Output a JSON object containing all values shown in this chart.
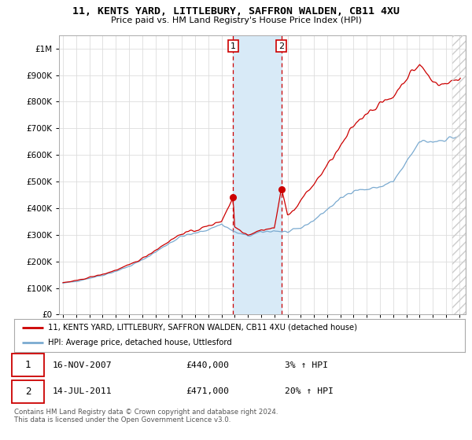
{
  "title": "11, KENTS YARD, LITTLEBURY, SAFFRON WALDEN, CB11 4XU",
  "subtitle": "Price paid vs. HM Land Registry's House Price Index (HPI)",
  "legend_line1": "11, KENTS YARD, LITTLEBURY, SAFFRON WALDEN, CB11 4XU (detached house)",
  "legend_line2": "HPI: Average price, detached house, Uttlesford",
  "annotation1_label": "1",
  "annotation1_date": "16-NOV-2007",
  "annotation1_price": "£440,000",
  "annotation1_hpi": "3% ↑ HPI",
  "annotation2_label": "2",
  "annotation2_date": "14-JUL-2011",
  "annotation2_price": "£471,000",
  "annotation2_hpi": "20% ↑ HPI",
  "footnote": "Contains HM Land Registry data © Crown copyright and database right 2024.\nThis data is licensed under the Open Government Licence v3.0.",
  "red_color": "#cc0000",
  "blue_color": "#7aaad0",
  "shade_color": "#d8eaf7",
  "dashed_color": "#cc0000",
  "grid_color": "#dddddd",
  "bg_color": "#ffffff",
  "ylim": [
    0,
    1050000
  ],
  "yticks": [
    0,
    100000,
    200000,
    300000,
    400000,
    500000,
    600000,
    700000,
    800000,
    900000,
    1000000
  ],
  "ytick_labels": [
    "£0",
    "£100K",
    "£200K",
    "£300K",
    "£400K",
    "£500K",
    "£600K",
    "£700K",
    "£800K",
    "£900K",
    "£1M"
  ],
  "sale1_x": 2007.88,
  "sale1_y": 440000,
  "sale2_x": 2011.53,
  "sale2_y": 471000,
  "xlim_min": 1994.7,
  "xlim_max": 2025.5,
  "xtick_years": [
    1995,
    1996,
    1997,
    1998,
    1999,
    2000,
    2001,
    2002,
    2003,
    2004,
    2005,
    2006,
    2007,
    2008,
    2009,
    2010,
    2011,
    2012,
    2013,
    2014,
    2015,
    2016,
    2017,
    2018,
    2019,
    2020,
    2021,
    2022,
    2023,
    2024,
    2025
  ]
}
